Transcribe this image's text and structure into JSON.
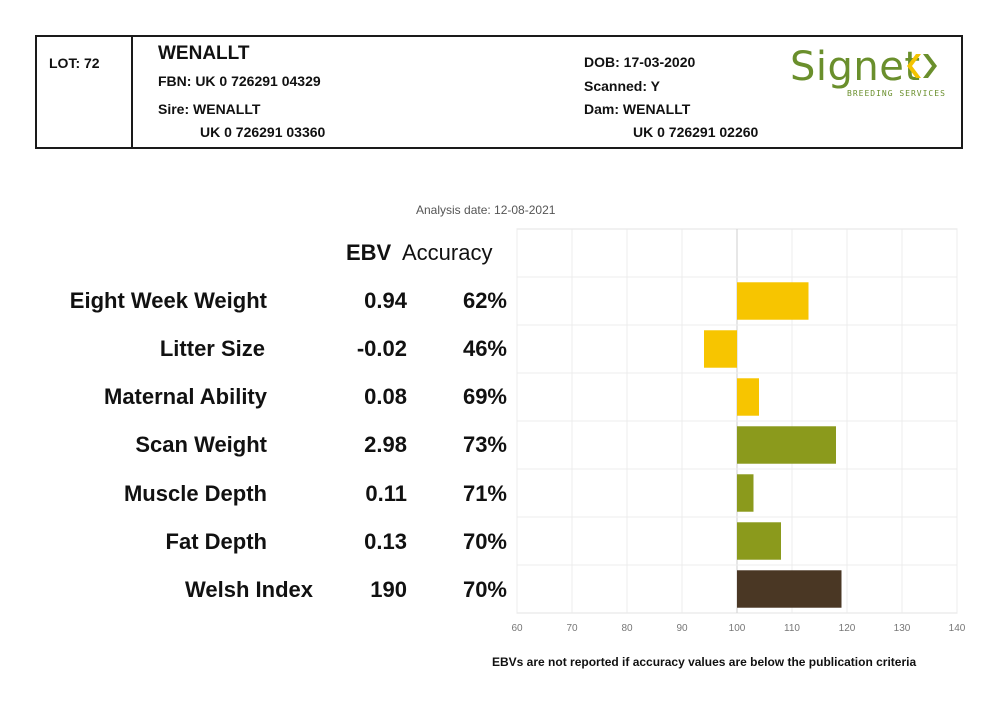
{
  "header": {
    "lot": "LOT: 72",
    "name": "WENALLT",
    "fbn": "FBN: UK 0 726291 04329",
    "sire_label": "Sire: WENALLT",
    "sire_id": "UK 0 726291 03360",
    "dob": "DOB: 17-03-2020",
    "scanned": "Scanned: Y",
    "dam_label": "Dam: WENALLT",
    "dam_id": "UK 0 726291 02260"
  },
  "logo": {
    "word": "Signet",
    "subtitle": "BREEDING SERVICES",
    "color": "#6a8f2c",
    "mark_colors": [
      "#f4c400",
      "#6a8f2c"
    ]
  },
  "analysis_date": "Analysis date: 12-08-2021",
  "table_header": {
    "ebv": "EBV",
    "accuracy": "Accuracy"
  },
  "rows": [
    {
      "label": "Eight Week Weight",
      "ebv": "0.94",
      "accuracy": "62%"
    },
    {
      "label": "Litter Size",
      "ebv": "-0.02",
      "accuracy": "46%"
    },
    {
      "label": "Maternal Ability",
      "ebv": "0.08",
      "accuracy": "69%"
    },
    {
      "label": "Scan Weight",
      "ebv": "2.98",
      "accuracy": "73%"
    },
    {
      "label": "Muscle Depth",
      "ebv": "0.11",
      "accuracy": "71%"
    },
    {
      "label": "Fat Depth",
      "ebv": "0.13",
      "accuracy": "70%"
    },
    {
      "label": "Welsh Index",
      "ebv": "190",
      "accuracy": "70%"
    }
  ],
  "chart_data": {
    "type": "bar",
    "orientation": "horizontal",
    "categories": [
      "Eight Week Weight",
      "Litter Size",
      "Maternal Ability",
      "Scan Weight",
      "Muscle Depth",
      "Fat Depth",
      "Welsh Index"
    ],
    "values": [
      113,
      94,
      104,
      118,
      103,
      108,
      119
    ],
    "baseline": 100,
    "xlim": [
      60,
      140
    ],
    "xticks": [
      60,
      70,
      80,
      90,
      100,
      110,
      120,
      130,
      140
    ],
    "grid": true,
    "colors": [
      "#f7c500",
      "#f7c500",
      "#f7c500",
      "#8b9a1c",
      "#8b9a1c",
      "#8b9a1c",
      "#4a3724"
    ]
  },
  "footnote": "EBVs are not reported if accuracy values are below the publication criteria"
}
